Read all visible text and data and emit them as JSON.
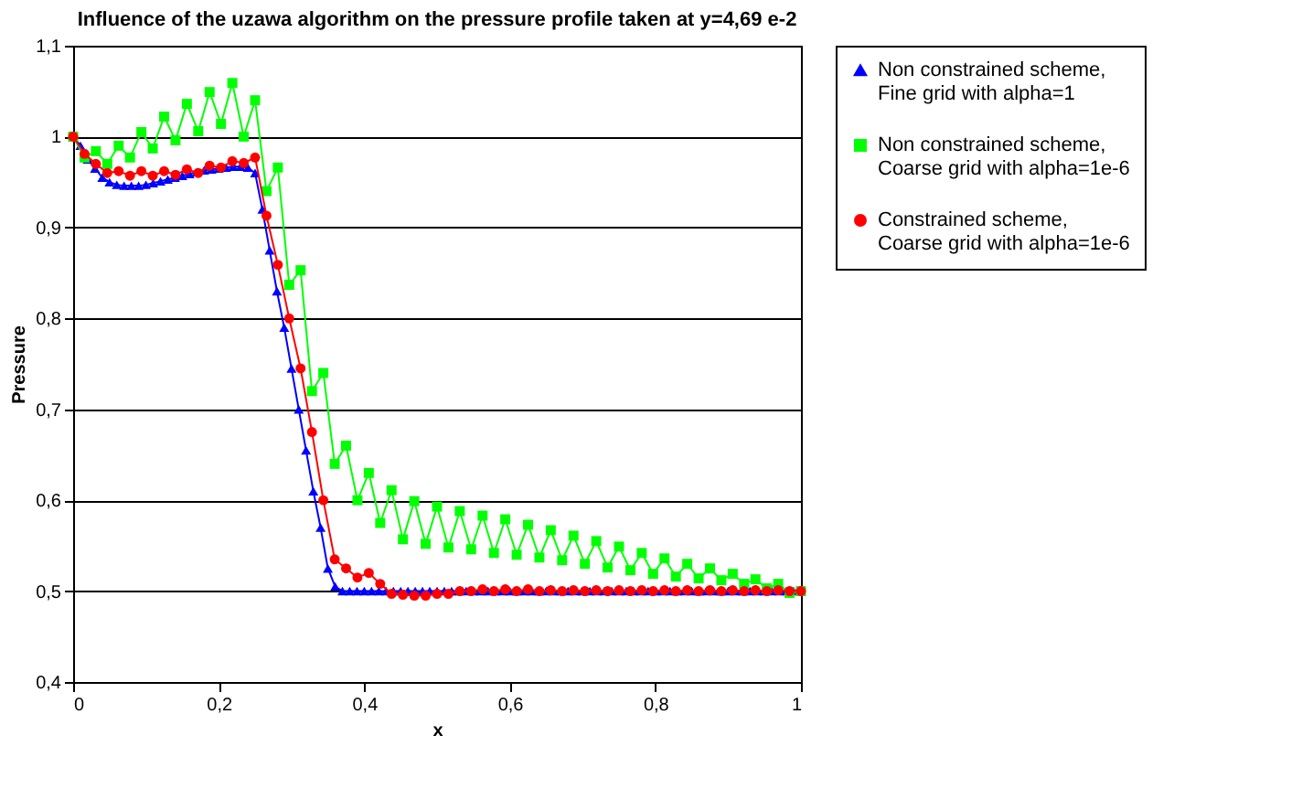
{
  "chart_data": {
    "type": "line",
    "title": "Influence of the uzawa algorithm on the pressure profile taken at y=4,69 e-2",
    "xlabel": "x",
    "ylabel": "Pressure",
    "xlim": [
      0,
      1
    ],
    "xticks": [
      0,
      {
        "value": 0.2,
        "label": "0,2"
      },
      {
        "value": 0.4,
        "label": "0,4"
      },
      {
        "value": 0.6,
        "label": "0,6"
      },
      {
        "value": 0.8,
        "label": "0,8"
      },
      1
    ],
    "ylim": [
      0.4,
      1.1
    ],
    "yticks": [
      {
        "value": 0.4,
        "label": "0,4"
      },
      {
        "value": 0.5,
        "label": "0,5"
      },
      {
        "value": 0.6,
        "label": "0,6"
      },
      {
        "value": 0.7,
        "label": "0,7"
      },
      {
        "value": 0.8,
        "label": "0,8"
      },
      {
        "value": 0.9,
        "label": "0,9"
      },
      1,
      {
        "value": 1.1,
        "label": "1,1"
      }
    ],
    "grid": "y",
    "legend": "right",
    "x": [
      0,
      0.015625,
      0.03125,
      0.046875,
      0.0625,
      0.078125,
      0.09375,
      0.109375,
      0.125,
      0.140625,
      0.15625,
      0.171875,
      0.1875,
      0.203125,
      0.21875,
      0.234375,
      0.25,
      0.265625,
      0.28125,
      0.296875,
      0.3125,
      0.328125,
      0.34375,
      0.359375,
      0.375,
      0.390625,
      0.40625,
      0.421875,
      0.4375,
      0.453125,
      0.46875,
      0.484375,
      0.5,
      0.515625,
      0.53125,
      0.546875,
      0.5625,
      0.578125,
      0.59375,
      0.609375,
      0.625,
      0.640625,
      0.65625,
      0.671875,
      0.6875,
      0.703125,
      0.71875,
      0.734375,
      0.75,
      0.765625,
      0.78125,
      0.796875,
      0.8125,
      0.828125,
      0.84375,
      0.859375,
      0.875,
      0.890625,
      0.90625,
      0.921875,
      0.9375,
      0.953125,
      0.96875,
      0.984375,
      1
    ],
    "series": [
      {
        "name": "Non constrained scheme, Fine grid with alpha=1",
        "color": "#0000ff",
        "marker": "triangle",
        "x": [
          0,
          0.01,
          0.02,
          0.03,
          0.04,
          0.05,
          0.06,
          0.07,
          0.08,
          0.09,
          0.1,
          0.11,
          0.12,
          0.13,
          0.14,
          0.15,
          0.16,
          0.17,
          0.18,
          0.19,
          0.2,
          0.21,
          0.22,
          0.23,
          0.24,
          0.25,
          0.26,
          0.27,
          0.28,
          0.29,
          0.3,
          0.31,
          0.32,
          0.33,
          0.34,
          0.35,
          0.36,
          0.37,
          0.38,
          0.39,
          0.4,
          0.41,
          0.42,
          0.43,
          0.44,
          0.45,
          0.46,
          0.47,
          0.48,
          0.49,
          0.5,
          0.51,
          0.52,
          0.53,
          0.54,
          0.55,
          0.56,
          0.57,
          0.58,
          0.59,
          0.6,
          0.61,
          0.62,
          0.63,
          0.64,
          0.65,
          0.66,
          0.67,
          0.68,
          0.69,
          0.7,
          0.71,
          0.72,
          0.73,
          0.74,
          0.75,
          0.76,
          0.77,
          0.78,
          0.79,
          0.8,
          0.81,
          0.82,
          0.83,
          0.84,
          0.85,
          0.86,
          0.87,
          0.88,
          0.89,
          0.9,
          0.91,
          0.92,
          0.93,
          0.94,
          0.95,
          0.96,
          0.97,
          0.98,
          0.99,
          1
        ],
        "values": [
          1.0,
          0.99,
          0.975,
          0.965,
          0.955,
          0.95,
          0.947,
          0.946,
          0.946,
          0.946,
          0.947,
          0.949,
          0.951,
          0.953,
          0.955,
          0.957,
          0.959,
          0.961,
          0.963,
          0.964,
          0.965,
          0.966,
          0.967,
          0.967,
          0.966,
          0.96,
          0.92,
          0.875,
          0.83,
          0.79,
          0.745,
          0.7,
          0.655,
          0.61,
          0.57,
          0.525,
          0.505,
          0.5,
          0.5,
          0.5,
          0.5,
          0.5,
          0.5,
          0.5,
          0.5,
          0.5,
          0.5,
          0.5,
          0.5,
          0.5,
          0.5,
          0.5,
          0.5,
          0.5,
          0.5,
          0.5,
          0.5,
          0.5,
          0.5,
          0.5,
          0.5,
          0.5,
          0.5,
          0.5,
          0.5,
          0.5,
          0.5,
          0.5,
          0.5,
          0.5,
          0.5,
          0.5,
          0.5,
          0.5,
          0.5,
          0.5,
          0.5,
          0.5,
          0.5,
          0.5,
          0.5,
          0.5,
          0.5,
          0.5,
          0.5,
          0.5,
          0.5,
          0.5,
          0.5,
          0.5,
          0.5,
          0.5,
          0.5,
          0.5,
          0.5,
          0.5,
          0.5,
          0.5,
          0.5,
          0.5,
          0.5
        ]
      },
      {
        "name": "Non constrained scheme, Coarse grid with alpha=1e-6",
        "color": "#00ff00",
        "marker": "square",
        "values": [
          1.0,
          0.977,
          0.984,
          0.97,
          0.99,
          0.977,
          1.005,
          0.987,
          1.022,
          0.996,
          1.036,
          1.006,
          1.049,
          1.014,
          1.059,
          1.0,
          1.04,
          0.94,
          0.966,
          0.837,
          0.853,
          0.72,
          0.74,
          0.64,
          0.66,
          0.6,
          0.63,
          0.575,
          0.611,
          0.557,
          0.599,
          0.552,
          0.593,
          0.548,
          0.588,
          0.546,
          0.583,
          0.542,
          0.579,
          0.54,
          0.573,
          0.537,
          0.567,
          0.534,
          0.561,
          0.53,
          0.555,
          0.526,
          0.549,
          0.523,
          0.542,
          0.519,
          0.536,
          0.516,
          0.53,
          0.514,
          0.525,
          0.512,
          0.519,
          0.508,
          0.513,
          0.503,
          0.508,
          0.498,
          0.5
        ]
      },
      {
        "name": "Constrained scheme, Coarse grid with alpha=1e-6",
        "color": "#ff0000",
        "marker": "circle",
        "values": [
          1.0,
          0.981,
          0.97,
          0.96,
          0.962,
          0.957,
          0.962,
          0.957,
          0.962,
          0.958,
          0.964,
          0.96,
          0.968,
          0.966,
          0.973,
          0.971,
          0.977,
          0.913,
          0.859,
          0.8,
          0.745,
          0.675,
          0.6,
          0.535,
          0.525,
          0.515,
          0.52,
          0.508,
          0.497,
          0.496,
          0.495,
          0.495,
          0.497,
          0.497,
          0.5,
          0.5,
          0.502,
          0.5,
          0.502,
          0.5,
          0.502,
          0.5,
          0.501,
          0.5,
          0.501,
          0.5,
          0.501,
          0.5,
          0.501,
          0.5,
          0.501,
          0.5,
          0.501,
          0.5,
          0.501,
          0.5,
          0.501,
          0.5,
          0.501,
          0.5,
          0.501,
          0.5,
          0.501,
          0.5,
          0.5
        ]
      }
    ]
  }
}
